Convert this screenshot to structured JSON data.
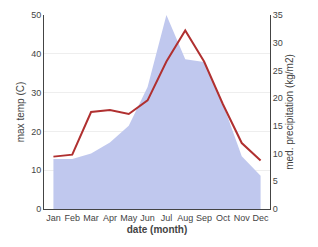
{
  "chart_data": {
    "type": "line",
    "xlabel": "date (month)",
    "ylabel": "max temp (C)",
    "y2label": "med. precipitation (kg/m2)",
    "categories": [
      "Jan",
      "Feb",
      "Mar",
      "Apr",
      "May",
      "Jun",
      "Jul",
      "Aug",
      "Sep",
      "Oct",
      "Nov",
      "Dec"
    ],
    "series": [
      {
        "type": "area",
        "axis": "y2",
        "color": "#c0c8ee",
        "values": [
          9.0,
          9.0,
          10.0,
          12.0,
          15.0,
          22.0,
          35.0,
          27.0,
          26.5,
          19.0,
          9.5,
          6.0
        ]
      },
      {
        "type": "line",
        "color": "#b03030",
        "values": [
          13.5,
          14.0,
          25.0,
          25.5,
          24.5,
          28.0,
          38.0,
          46.0,
          38.0,
          27.0,
          17.0,
          12.5
        ]
      }
    ],
    "ylim": [
      0,
      50
    ],
    "yticks": [
      0,
      10,
      20,
      30,
      40,
      50
    ],
    "y2lim": [
      0,
      35
    ],
    "y2ticks": [
      0,
      5,
      10,
      15,
      20,
      25,
      30,
      35
    ],
    "grid": true
  }
}
